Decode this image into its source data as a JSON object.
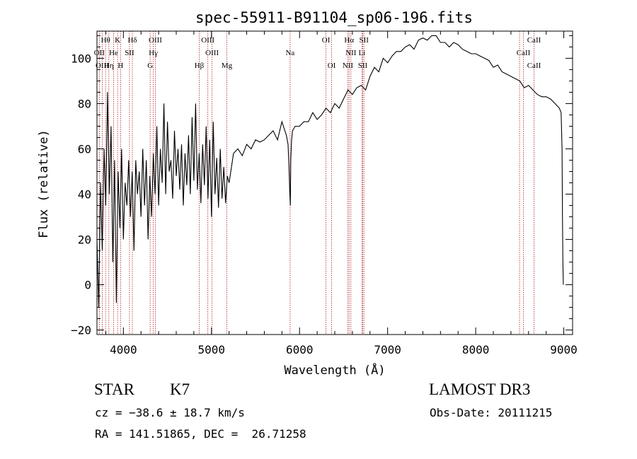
{
  "chart_data": {
    "type": "line",
    "title": "spec-55911-B91104_sp06-196.fits",
    "xlabel": "Wavelength (Å)",
    "ylabel": "Flux (relative)",
    "xlim": [
      3700,
      9100
    ],
    "ylim": [
      -22,
      112
    ],
    "x_ticks": [
      4000,
      5000,
      6000,
      7000,
      8000,
      9000
    ],
    "y_ticks": [
      -20,
      0,
      20,
      40,
      60,
      80,
      100
    ],
    "series": [
      {
        "name": "spectrum",
        "x": [
          3700,
          3720,
          3740,
          3760,
          3780,
          3800,
          3820,
          3840,
          3860,
          3880,
          3900,
          3920,
          3940,
          3960,
          3980,
          4000,
          4020,
          4040,
          4060,
          4080,
          4100,
          4120,
          4140,
          4160,
          4180,
          4200,
          4220,
          4240,
          4260,
          4280,
          4300,
          4320,
          4340,
          4360,
          4380,
          4400,
          4420,
          4440,
          4460,
          4480,
          4500,
          4520,
          4540,
          4560,
          4580,
          4600,
          4620,
          4640,
          4660,
          4680,
          4700,
          4720,
          4740,
          4760,
          4780,
          4800,
          4820,
          4840,
          4860,
          4880,
          4900,
          4920,
          4940,
          4960,
          4980,
          5000,
          5020,
          5040,
          5060,
          5080,
          5100,
          5120,
          5140,
          5160,
          5180,
          5200,
          5250,
          5300,
          5350,
          5400,
          5450,
          5500,
          5550,
          5600,
          5650,
          5700,
          5750,
          5800,
          5850,
          5870,
          5880,
          5890,
          5895,
          5900,
          5910,
          5920,
          5950,
          6000,
          6050,
          6100,
          6150,
          6200,
          6250,
          6300,
          6350,
          6400,
          6450,
          6500,
          6550,
          6600,
          6650,
          6700,
          6750,
          6800,
          6850,
          6900,
          6950,
          7000,
          7050,
          7100,
          7150,
          7200,
          7250,
          7300,
          7350,
          7400,
          7450,
          7500,
          7550,
          7600,
          7650,
          7700,
          7750,
          7800,
          7850,
          7900,
          7950,
          8000,
          8050,
          8100,
          8150,
          8200,
          8250,
          8300,
          8350,
          8400,
          8450,
          8500,
          8550,
          8600,
          8650,
          8700,
          8750,
          8800,
          8850,
          8900,
          8950,
          8970,
          8980,
          8985,
          8990,
          8995
        ],
        "y": [
          20,
          -10,
          45,
          15,
          60,
          35,
          85,
          40,
          70,
          10,
          55,
          -8,
          50,
          25,
          60,
          20,
          45,
          35,
          55,
          30,
          50,
          15,
          55,
          40,
          50,
          30,
          60,
          35,
          55,
          20,
          48,
          30,
          58,
          40,
          70,
          35,
          60,
          45,
          80,
          40,
          72,
          50,
          55,
          38,
          68,
          48,
          60,
          42,
          62,
          35,
          58,
          44,
          66,
          40,
          74,
          46,
          80,
          42,
          58,
          36,
          62,
          44,
          70,
          38,
          64,
          30,
          72,
          40,
          56,
          34,
          60,
          38,
          52,
          36,
          48,
          45,
          58,
          60,
          57,
          62,
          60,
          64,
          63,
          64,
          66,
          68,
          64,
          72,
          66,
          62,
          52,
          40,
          35,
          55,
          64,
          68,
          70,
          70,
          72,
          72,
          76,
          73,
          75,
          78,
          76,
          80,
          78,
          82,
          86,
          84,
          87,
          88,
          86,
          92,
          96,
          94,
          100,
          98,
          101,
          103,
          103,
          105,
          106,
          104,
          108,
          109,
          108,
          110,
          110,
          107,
          107,
          105,
          107,
          106,
          104,
          103,
          102,
          102,
          101,
          100,
          99,
          96,
          97,
          94,
          93,
          92,
          91,
          90,
          87,
          88,
          86,
          84,
          83,
          83,
          82,
          80,
          78,
          76,
          60,
          30,
          10,
          0
        ]
      }
    ],
    "line_labels": [
      {
        "text": "Hθ",
        "wl": 3798,
        "row": 0
      },
      {
        "text": "K",
        "wl": 3934,
        "row": 0
      },
      {
        "text": "Hδ",
        "wl": 4102,
        "row": 0
      },
      {
        "text": "OIII",
        "wl": 4363,
        "row": 0
      },
      {
        "text": "OIII",
        "wl": 4959,
        "row": 0
      },
      {
        "text": "OI",
        "wl": 6300,
        "row": 0
      },
      {
        "text": "Hα",
        "wl": 6563,
        "row": 0
      },
      {
        "text": "SII",
        "wl": 6731,
        "row": 0
      },
      {
        "text": "CaII",
        "wl": 8662,
        "row": 0
      },
      {
        "text": "OII",
        "wl": 3727,
        "row": 1
      },
      {
        "text": "He",
        "wl": 3889,
        "row": 1
      },
      {
        "text": "SII",
        "wl": 4069,
        "row": 1
      },
      {
        "text": "Hγ",
        "wl": 4340,
        "row": 1
      },
      {
        "text": "OIII",
        "wl": 5007,
        "row": 1
      },
      {
        "text": "Na",
        "wl": 5893,
        "row": 1
      },
      {
        "text": "NII",
        "wl": 6583,
        "row": 1
      },
      {
        "text": "Li",
        "wl": 6708,
        "row": 1
      },
      {
        "text": "CaII",
        "wl": 8542,
        "row": 1
      },
      {
        "text": "OIII",
        "wl": 3760,
        "row": 2
      },
      {
        "text": "Hη",
        "wl": 3835,
        "row": 2
      },
      {
        "text": "H",
        "wl": 3968,
        "row": 2
      },
      {
        "text": "G",
        "wl": 4304,
        "row": 2
      },
      {
        "text": "Hβ",
        "wl": 4861,
        "row": 2
      },
      {
        "text": "Mg",
        "wl": 5175,
        "row": 2
      },
      {
        "text": "OI",
        "wl": 6364,
        "row": 2
      },
      {
        "text": "NII",
        "wl": 6548,
        "row": 2
      },
      {
        "text": "SII",
        "wl": 6717,
        "row": 2
      },
      {
        "text": "CaII",
        "wl": 8662,
        "row": 2
      }
    ],
    "line_markers": [
      3727,
      3760,
      3798,
      3835,
      3889,
      3934,
      3968,
      4069,
      4102,
      4304,
      4340,
      4363,
      4861,
      4959,
      5007,
      5175,
      5893,
      6300,
      6364,
      6548,
      6563,
      6583,
      6708,
      6717,
      6731,
      8498,
      8542,
      8662
    ]
  },
  "info": {
    "object_type": "STAR",
    "subclass": "K7",
    "survey": "LAMOST DR3",
    "cz": "cz = −38.6 ± 18.7 km/s",
    "obs_date": "Obs-Date: 20111215",
    "coords": "RA = 141.51865, DEC =  26.71258"
  },
  "colors": {
    "axes": "#000000",
    "spectrum": "#000000",
    "line_markers": "#b22222"
  }
}
